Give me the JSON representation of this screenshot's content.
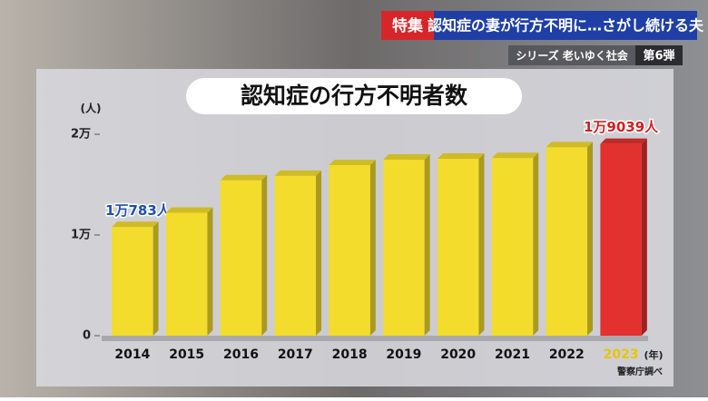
{
  "banner": {
    "tag": "特集",
    "headline": "認知症の妻が行方不明に…さがし続ける夫",
    "series": "シリーズ 老いゆく社会",
    "episode": "第6弾"
  },
  "chart_data": {
    "type": "bar",
    "title": "認知症の行方不明者数",
    "y_unit": "(人)",
    "x_unit": "(年)",
    "source": "警察庁調べ",
    "categories": [
      "2014",
      "2015",
      "2016",
      "2017",
      "2018",
      "2019",
      "2020",
      "2021",
      "2022",
      "2023"
    ],
    "values": [
      10783,
      12208,
      15432,
      15863,
      16927,
      17479,
      17565,
      17636,
      18709,
      19039
    ],
    "value_labels": [
      "1万783人",
      null,
      null,
      null,
      null,
      null,
      null,
      null,
      null,
      "1万9039人"
    ],
    "colors": [
      "#f3dc2b",
      "#f3dc2b",
      "#f3dc2b",
      "#f3dc2b",
      "#f3dc2b",
      "#f3dc2b",
      "#f3dc2b",
      "#f3dc2b",
      "#f3dc2b",
      "#e2312f"
    ],
    "ylim": [
      0,
      20000
    ],
    "yticks": [
      0,
      {
        "value": 10000,
        "label": "1万"
      },
      {
        "value": 20000,
        "label": "2万"
      }
    ],
    "grid": false
  }
}
